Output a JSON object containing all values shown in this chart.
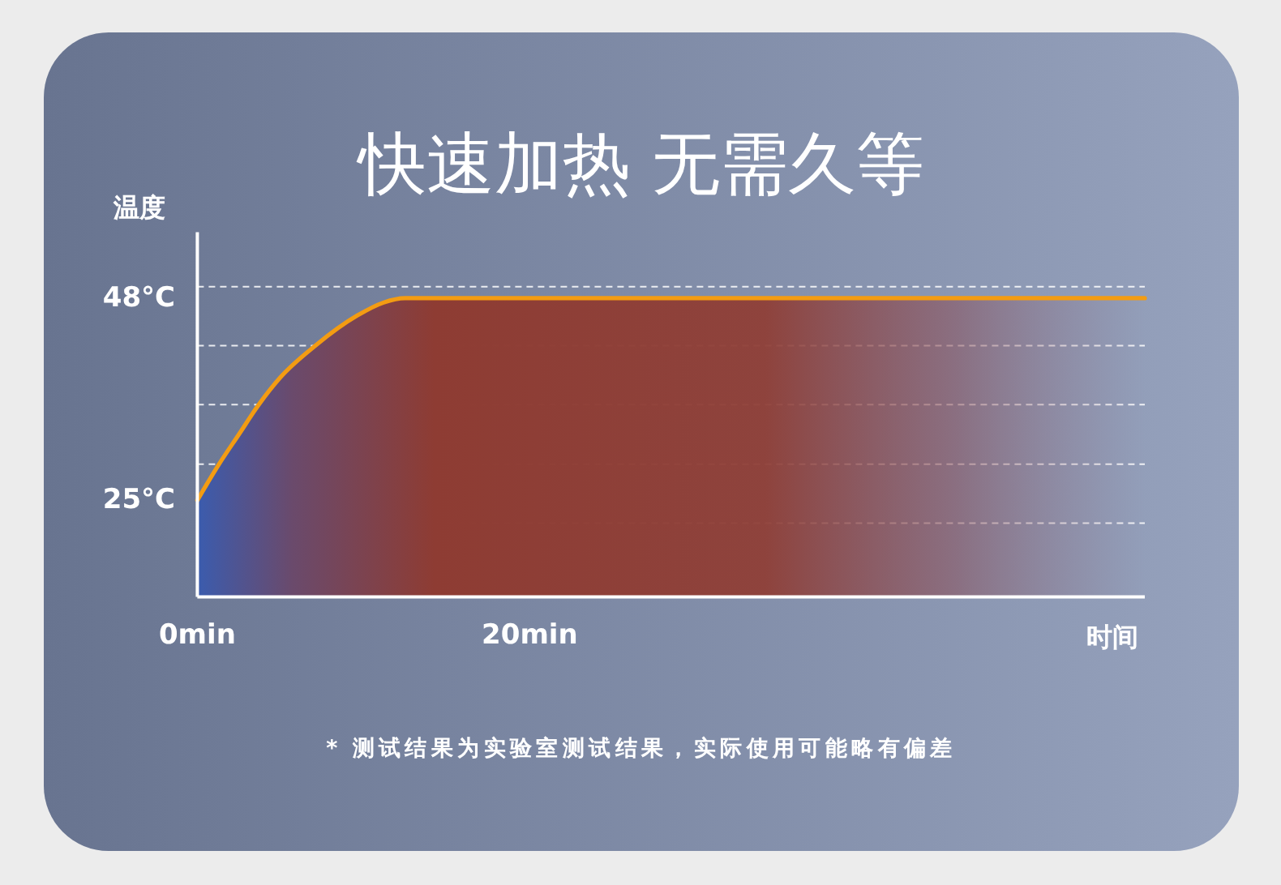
{
  "chart_data": {
    "type": "area",
    "title": "快速加热 无需久等",
    "xlabel": "时间",
    "ylabel": "温度",
    "x": [
      0,
      1.3,
      2.5,
      3.7,
      5,
      7.1,
      9.6,
      11.2,
      12.5,
      57
    ],
    "series": [
      {
        "color": "#f39c12",
        "values": [
          25,
          29.1,
          32.5,
          35.9,
          39,
          42.6,
          46,
          47.5,
          48,
          48
        ]
      }
    ],
    "xlim": [
      0,
      57
    ],
    "xticks": [
      {
        "value": 0,
        "label": "0min"
      },
      {
        "value": 20,
        "label": "20min"
      }
    ],
    "ylim": [
      14,
      55.5
    ],
    "yticks": [
      {
        "value": 25,
        "label": "25°C"
      },
      {
        "value": 48,
        "label": "48°C"
      }
    ],
    "ref_lines": [
      {
        "axis": "y",
        "value": 49.3,
        "color": "#ffffff",
        "line_style": "dashed"
      },
      {
        "axis": "y",
        "value": 42.6,
        "color": "#ffffff",
        "line_style": "dashed"
      },
      {
        "axis": "y",
        "value": 35.9,
        "color": "#ffffff",
        "line_style": "dashed"
      },
      {
        "axis": "y",
        "value": 29.1,
        "color": "#ffffff",
        "line_style": "dashed"
      },
      {
        "axis": "y",
        "value": 22.4,
        "color": "#ffffff",
        "line_style": "dashed"
      }
    ],
    "annotations": [
      "* 测试结果为实验室测试结果，实际使用可能略有偏差"
    ]
  }
}
